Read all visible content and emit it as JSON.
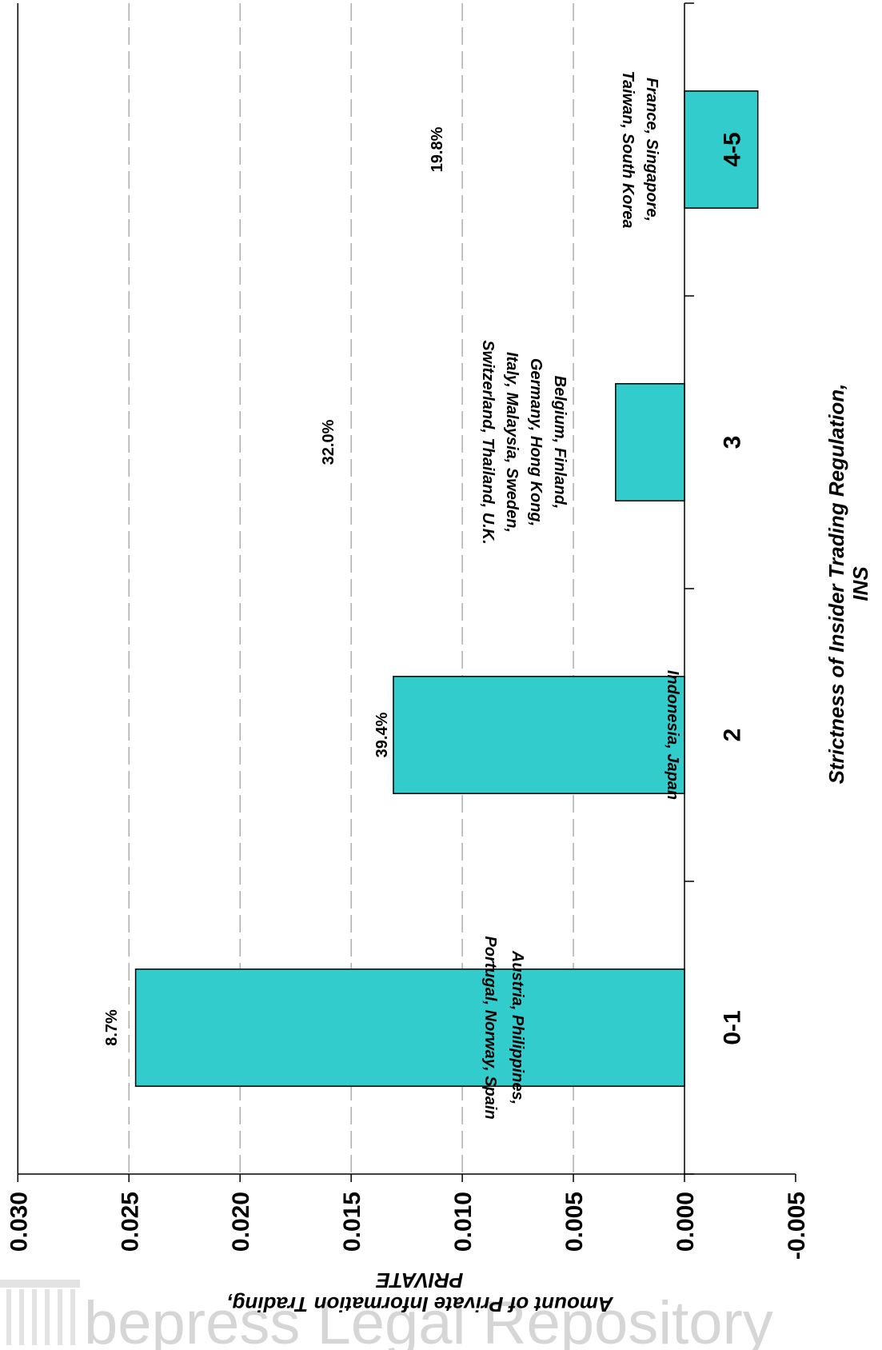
{
  "chart_data": {
    "type": "bar",
    "orientation": "rotated-90",
    "categories": [
      "0-1",
      "2",
      "3",
      "4-5"
    ],
    "values": [
      0.0247,
      0.0131,
      0.0031,
      -0.0033
    ],
    "percent_labels": [
      "8.7%",
      "39.4%",
      "32.0%",
      "19.8%"
    ],
    "country_labels": [
      [
        "Austria, Philippines,",
        "Portugal, Norway, Spain"
      ],
      [
        "Indonesia, Japan"
      ],
      [
        "Belgium, Finland,",
        "Germany, Hong Kong,",
        "Italy, Malaysia, Sweden,",
        "Switzerland, Thailand, U.K."
      ],
      [
        "France, Singapore,",
        "Taiwan, South Korea"
      ]
    ],
    "ylim": [
      -0.005,
      0.03
    ],
    "yticks": [
      "0.030",
      "0.025",
      "0.020",
      "0.015",
      "0.010",
      "0.005",
      "0.000",
      "-0.005"
    ],
    "ylabel": [
      "Amount of Private Information Trading,",
      "PRIVATE"
    ],
    "xlabel": [
      "Strictness of Insider Trading Regulation,",
      "INS"
    ],
    "grid": true,
    "bar_color": "#33CCCC"
  },
  "watermark": "bepress Legal Repository"
}
